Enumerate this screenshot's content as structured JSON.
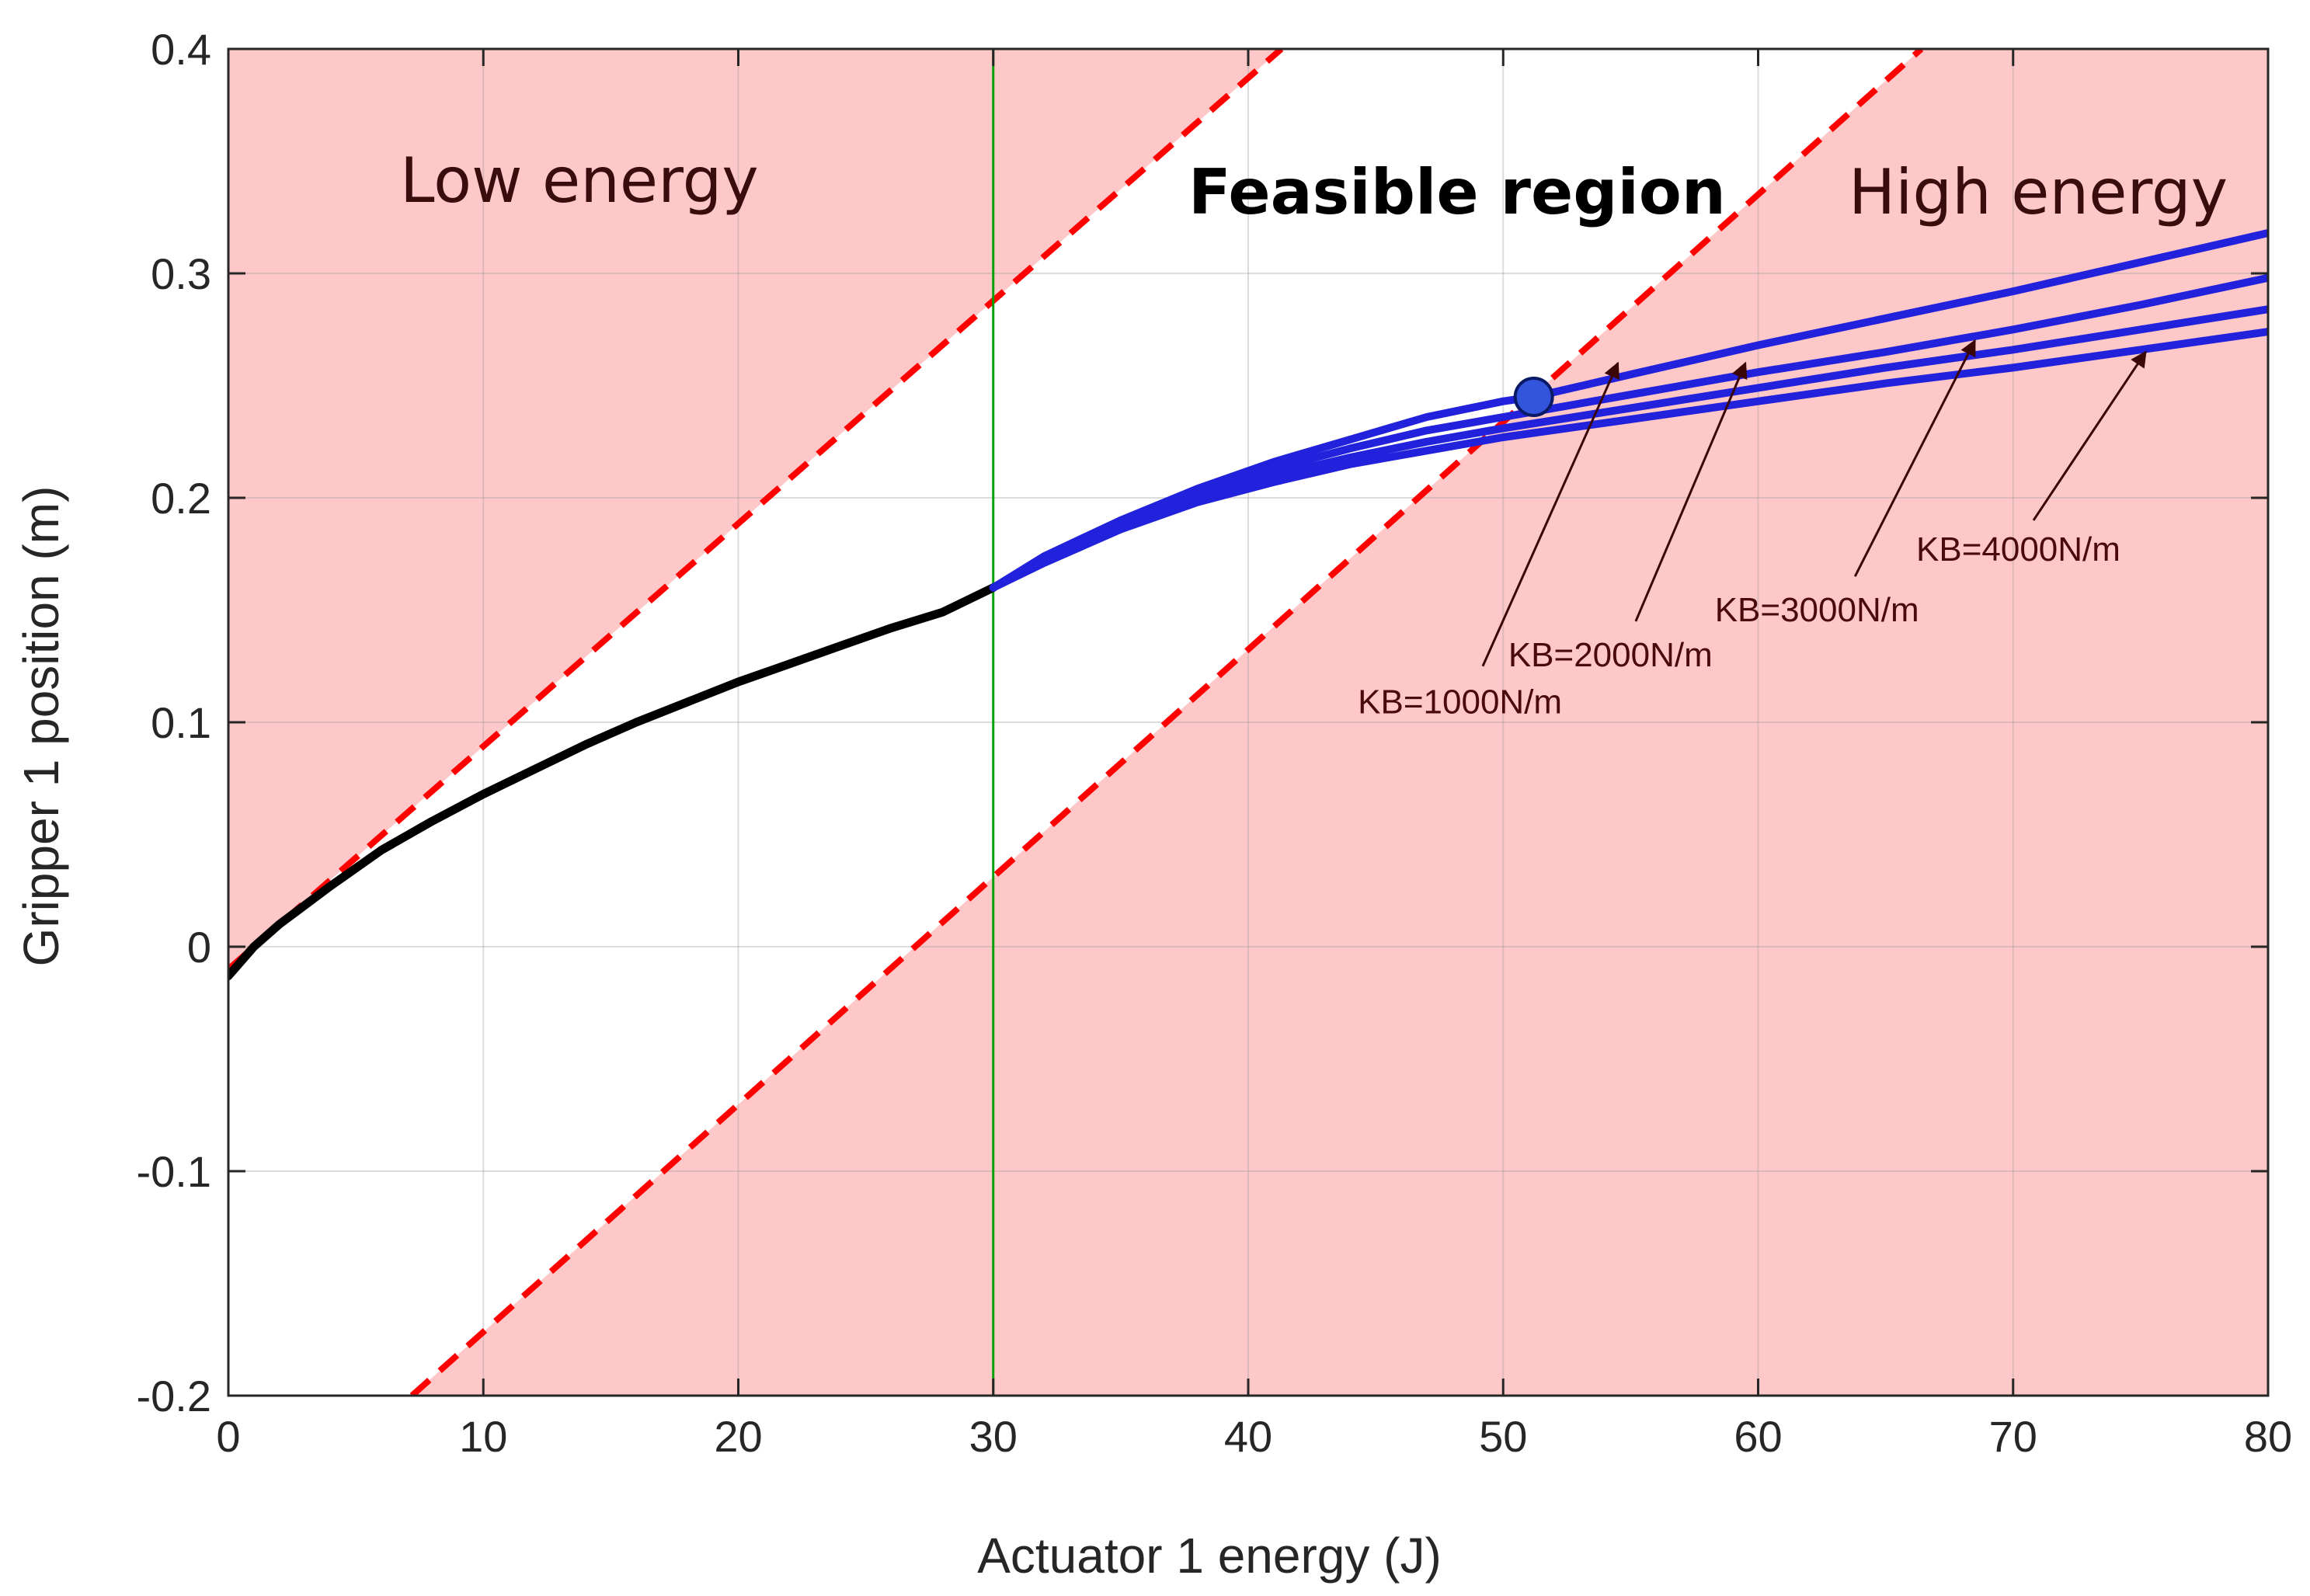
{
  "chart_data": {
    "type": "line",
    "title": "",
    "xlabel": "Actuator 1 energy (J)",
    "ylabel": "Gripper 1 position (m)",
    "xlim": [
      0,
      80
    ],
    "ylim": [
      -0.2,
      0.4
    ],
    "grid": true,
    "xticks": [
      0,
      10,
      20,
      30,
      40,
      50,
      60,
      70,
      80
    ],
    "xtick_labels": [
      "0",
      "10",
      "20",
      "30",
      "40",
      "50",
      "60",
      "70",
      "80"
    ],
    "yticks": [
      -0.2,
      -0.1,
      0,
      0.1,
      0.2,
      0.3,
      0.4
    ],
    "ytick_labels": [
      "-0.2",
      "-0.1",
      "0",
      "0.1",
      "0.2",
      "0.3",
      "0.4"
    ],
    "regions": {
      "low_energy_label": "Low energy",
      "feasible_label": "Feasible region",
      "high_energy_label": "High energy",
      "fill_color": "#ffc8c8"
    },
    "boundaries": [
      {
        "name": "upper-boundary",
        "x": [
          0,
          41.3
        ],
        "y": [
          -0.01,
          0.4
        ],
        "color": "#ff0000",
        "style": "dashed"
      },
      {
        "name": "lower-boundary",
        "x": [
          7.2,
          66.4
        ],
        "y": [
          -0.2,
          0.4
        ],
        "color": "#ff0000",
        "style": "dashed"
      }
    ],
    "vertical_line": {
      "x": 30,
      "color": "#00a000"
    },
    "series": [
      {
        "name": "common-trajectory",
        "color": "#000000",
        "x": [
          0,
          1,
          2,
          4,
          6,
          8,
          10,
          12,
          14,
          16,
          18,
          20,
          22,
          24,
          26,
          28,
          30
        ],
        "y": [
          -0.013,
          0.0,
          0.01,
          0.027,
          0.043,
          0.056,
          0.068,
          0.079,
          0.09,
          0.1,
          0.109,
          0.118,
          0.126,
          0.134,
          0.142,
          0.149,
          0.16
        ]
      },
      {
        "name": "KB=1000N/m",
        "color": "#2222dd",
        "x": [
          30,
          32,
          35,
          38,
          41,
          44,
          47,
          50,
          51.2,
          55,
          60,
          65,
          70,
          75,
          80
        ],
        "y": [
          0.16,
          0.174,
          0.19,
          0.204,
          0.216,
          0.226,
          0.236,
          0.243,
          0.245,
          0.255,
          0.268,
          0.28,
          0.292,
          0.305,
          0.318
        ]
      },
      {
        "name": "KB=2000N/m",
        "color": "#2222dd",
        "x": [
          30,
          32,
          35,
          38,
          41,
          44,
          47,
          50,
          55,
          60,
          65,
          70,
          75,
          80
        ],
        "y": [
          0.16,
          0.173,
          0.189,
          0.202,
          0.213,
          0.222,
          0.23,
          0.236,
          0.246,
          0.256,
          0.265,
          0.275,
          0.286,
          0.298
        ]
      },
      {
        "name": "KB=3000N/m",
        "color": "#2222dd",
        "x": [
          30,
          32,
          35,
          38,
          41,
          44,
          47,
          50,
          55,
          60,
          65,
          70,
          75,
          80
        ],
        "y": [
          0.16,
          0.172,
          0.188,
          0.2,
          0.21,
          0.218,
          0.225,
          0.231,
          0.24,
          0.249,
          0.258,
          0.266,
          0.275,
          0.284
        ]
      },
      {
        "name": "KB=4000N/m",
        "color": "#2222dd",
        "x": [
          30,
          32,
          35,
          38,
          41,
          44,
          47,
          50,
          55,
          60,
          65,
          70,
          75,
          80
        ],
        "y": [
          0.16,
          0.171,
          0.186,
          0.198,
          0.207,
          0.215,
          0.221,
          0.227,
          0.235,
          0.243,
          0.251,
          0.258,
          0.266,
          0.274
        ]
      }
    ],
    "marker": {
      "x": 51.2,
      "y": 0.245,
      "color": "#3355dd"
    },
    "annotations": [
      {
        "text": "KB=1000N/m",
        "text_x": 44.3,
        "text_y": 0.104,
        "arrow_from": [
          49.2,
          0.125
        ],
        "arrow_to": [
          54.5,
          0.26
        ]
      },
      {
        "text": "KB=2000N/m",
        "text_x": 50.2,
        "text_y": 0.125,
        "arrow_from": [
          55.2,
          0.145
        ],
        "arrow_to": [
          59.5,
          0.26
        ]
      },
      {
        "text": "KB=3000N/m",
        "text_x": 58.3,
        "text_y": 0.145,
        "arrow_from": [
          63.8,
          0.165
        ],
        "arrow_to": [
          68.5,
          0.27
        ]
      },
      {
        "text": "KB=4000N/m",
        "text_x": 66.2,
        "text_y": 0.172,
        "arrow_from": [
          70.8,
          0.19
        ],
        "arrow_to": [
          75.2,
          0.265
        ]
      }
    ]
  }
}
